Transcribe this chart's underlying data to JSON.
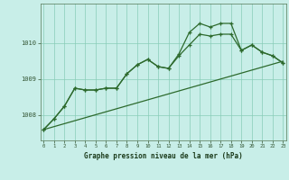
{
  "title": "Graphe pression niveau de la mer (hPa)",
  "background_color": "#c8eee8",
  "grid_color": "#88ccb8",
  "line_color": "#2d6a2d",
  "x_labels": [
    "0",
    "1",
    "2",
    "3",
    "4",
    "5",
    "6",
    "7",
    "8",
    "9",
    "10",
    "11",
    "12",
    "13",
    "14",
    "15",
    "16",
    "17",
    "18",
    "19",
    "20",
    "21",
    "22",
    "23"
  ],
  "y_ticks": [
    1008,
    1009,
    1010
  ],
  "ylim": [
    1007.3,
    1011.1
  ],
  "xlim": [
    -0.3,
    23.3
  ],
  "line_trend_x": [
    0,
    23
  ],
  "line_trend_y": [
    1007.6,
    1009.5
  ],
  "line_main_x": [
    0,
    1,
    2,
    3,
    4,
    5,
    6,
    7,
    8,
    9,
    10,
    11,
    12,
    13,
    14,
    15,
    16,
    17,
    18,
    19,
    20,
    21,
    22,
    23
  ],
  "line_main_y": [
    1007.6,
    1007.9,
    1008.25,
    1008.75,
    1008.7,
    1008.7,
    1008.75,
    1008.75,
    1009.15,
    1009.4,
    1009.55,
    1009.35,
    1009.3,
    1009.65,
    1009.95,
    1010.25,
    1010.2,
    1010.25,
    1010.25,
    1009.8,
    1009.95,
    1009.75,
    1009.65,
    1009.45
  ],
  "line_high_x": [
    0,
    1,
    2,
    3,
    4,
    5,
    6,
    7,
    8,
    9,
    10,
    11,
    12,
    13,
    14,
    15,
    16,
    17,
    18,
    19,
    20,
    21,
    22,
    23
  ],
  "line_high_y": [
    1007.6,
    1007.9,
    1008.25,
    1008.75,
    1008.7,
    1008.7,
    1008.75,
    1008.75,
    1009.15,
    1009.4,
    1009.55,
    1009.35,
    1009.3,
    1009.7,
    1010.3,
    1010.55,
    1010.45,
    1010.55,
    1010.55,
    1009.8,
    1009.95,
    1009.75,
    1009.65,
    1009.45
  ]
}
